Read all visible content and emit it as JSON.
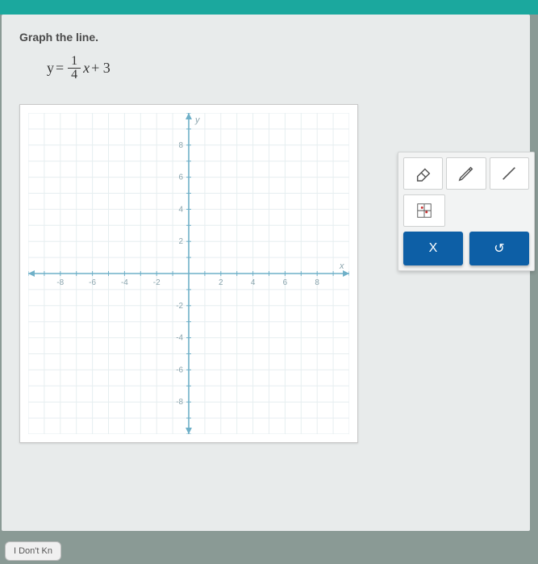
{
  "topbar": {
    "color": "#1ba89e"
  },
  "instruction": "Graph the line.",
  "equation": {
    "prefix": "y",
    "eq": "=",
    "numerator": "1",
    "denominator": "4",
    "var": "x",
    "suffix": "+ 3"
  },
  "chart": {
    "type": "cartesian-grid",
    "xlim": [
      -10,
      10
    ],
    "ylim": [
      -10,
      10
    ],
    "tick_step": 1,
    "label_step": 2,
    "axis_labels": {
      "x": "x",
      "y": "y"
    },
    "x_tick_labels": [
      "-8",
      "-6",
      "-4",
      "-2",
      "2",
      "4",
      "6",
      "8"
    ],
    "y_tick_labels": [
      "8",
      "6",
      "4",
      "2",
      "-2",
      "-4",
      "-6",
      "-8"
    ],
    "grid_color": "#e6eef0",
    "axis_color": "#6fb0c8",
    "tick_color": "#6fb0c8",
    "label_color": "#8aa4ad",
    "background_color": "#ffffff",
    "label_fontsize": 10
  },
  "tools": {
    "eraser": "eraser-icon",
    "pencil": "pencil-icon",
    "line": "line-icon",
    "point": "point-plot-icon"
  },
  "actions": {
    "cancel": "X",
    "reset": "↺"
  },
  "bottom": {
    "label": "I Don't Kn"
  }
}
